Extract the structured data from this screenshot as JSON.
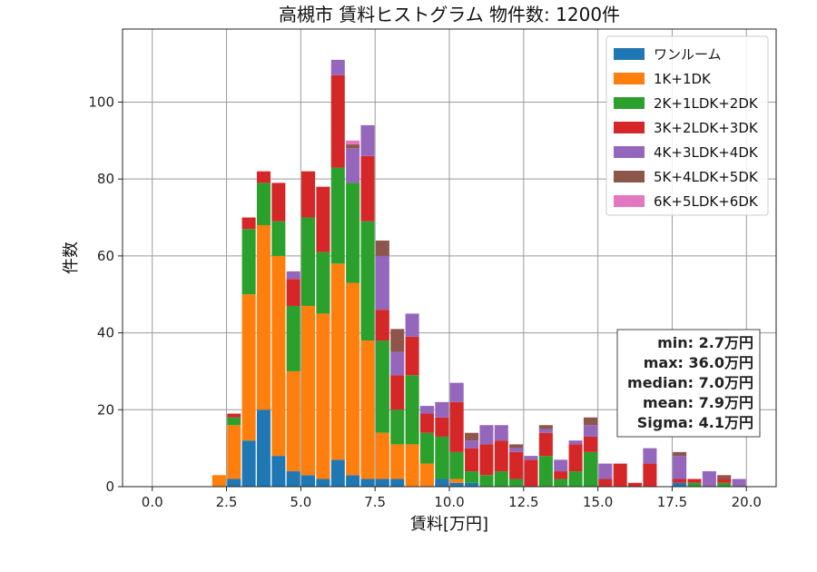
{
  "chart_data": {
    "type": "bar",
    "stacked": true,
    "title": "高槻市 賃料ヒストグラム 物件数: 1200件",
    "xlabel": "賃料[万円]",
    "ylabel": "件数",
    "xlim": [
      -1.0,
      21.0
    ],
    "ylim": [
      0,
      119
    ],
    "x_ticks": [
      0,
      2.5,
      5,
      7.5,
      10,
      12.5,
      15,
      17.5,
      20
    ],
    "x_tick_labels": [
      "0.0",
      "2.5",
      "5.0",
      "7.5",
      "10.0",
      "12.5",
      "15.0",
      "17.5",
      "20.0"
    ],
    "y_ticks": [
      0,
      20,
      40,
      60,
      80,
      100
    ],
    "y_tick_labels": [
      "0",
      "20",
      "40",
      "60",
      "80",
      "100"
    ],
    "grid": true,
    "legend_position": "top-right",
    "bin_width": 0.5,
    "x": [
      2.25,
      2.75,
      3.25,
      3.75,
      4.25,
      4.75,
      5.25,
      5.75,
      6.25,
      6.75,
      7.25,
      7.75,
      8.25,
      8.75,
      9.25,
      9.75,
      10.25,
      10.75,
      11.25,
      11.75,
      12.25,
      12.75,
      13.25,
      13.75,
      14.25,
      14.75,
      15.25,
      15.75,
      16.25,
      16.75,
      17.25,
      17.75,
      18.25,
      18.75,
      19.25,
      19.75
    ],
    "series": [
      {
        "name": "ワンルーム",
        "color": "#1f77b4",
        "values": [
          0,
          2,
          12,
          20,
          8,
          4,
          3,
          2,
          7,
          3,
          2,
          2,
          2,
          0,
          0,
          2,
          1,
          1,
          0,
          0,
          0,
          0,
          0,
          0,
          0,
          0,
          0,
          0,
          0,
          0,
          0,
          1,
          0,
          0,
          0,
          0
        ]
      },
      {
        "name": "1K+1DK",
        "color": "#ff7f0e",
        "values": [
          3,
          14,
          38,
          48,
          52,
          26,
          44,
          43,
          51,
          50,
          36,
          12,
          9,
          11,
          6,
          0,
          1,
          0,
          0,
          0,
          0,
          0,
          0,
          0,
          0,
          0,
          0,
          0,
          0,
          0,
          0,
          0,
          0,
          0,
          0,
          0
        ]
      },
      {
        "name": "2K+1LDK+2DK",
        "color": "#2ca02c",
        "values": [
          0,
          2,
          17,
          11,
          9,
          17,
          23,
          16,
          25,
          26,
          31,
          24,
          9,
          18,
          8,
          11,
          7,
          3,
          3,
          4,
          2,
          0,
          8,
          2,
          4,
          9,
          0,
          0,
          0,
          0,
          0,
          0,
          1,
          0,
          1,
          0
        ]
      },
      {
        "name": "3K+2LDK+3DK",
        "color": "#d62728",
        "values": [
          0,
          1,
          3,
          3,
          10,
          7,
          12,
          17,
          24,
          0,
          17,
          8,
          9,
          10,
          5,
          5,
          13,
          6,
          8,
          8,
          7,
          7,
          6,
          2,
          7,
          4,
          2,
          6,
          1,
          6,
          0,
          1,
          1,
          0,
          1,
          0
        ]
      },
      {
        "name": "4K+3LDK+4DK",
        "color": "#9467bd",
        "values": [
          0,
          0,
          0,
          0,
          0,
          2,
          0,
          0,
          4,
          9,
          8,
          14,
          6,
          6,
          2,
          4,
          5,
          2,
          5,
          4,
          1,
          1,
          1,
          3,
          1,
          3,
          4,
          0,
          0,
          4,
          0,
          6,
          0,
          4,
          0,
          2
        ]
      },
      {
        "name": "5K+4LDK+5DK",
        "color": "#8c564b",
        "values": [
          0,
          0,
          0,
          0,
          0,
          0,
          0,
          0,
          0,
          1,
          0,
          4,
          6,
          0,
          0,
          0,
          0,
          2,
          0,
          0,
          1,
          0,
          1,
          0,
          0,
          2,
          0,
          0,
          0,
          0,
          0,
          1,
          0,
          0,
          1,
          0
        ]
      },
      {
        "name": "6K+5LDK+6DK",
        "color": "#e377c2",
        "values": [
          0,
          0,
          0,
          0,
          0,
          0,
          0,
          0,
          0,
          1,
          0,
          0,
          0,
          0,
          0,
          0,
          0,
          0,
          0,
          0,
          0,
          0,
          0,
          0,
          0,
          0,
          0,
          0,
          0,
          0,
          0,
          0,
          0,
          0,
          0,
          0
        ]
      }
    ],
    "stats": [
      "min: 2.7万円",
      "max: 36.0万円",
      "median: 7.0万円",
      "mean: 7.9万円",
      "Sigma: 4.1万円"
    ]
  }
}
